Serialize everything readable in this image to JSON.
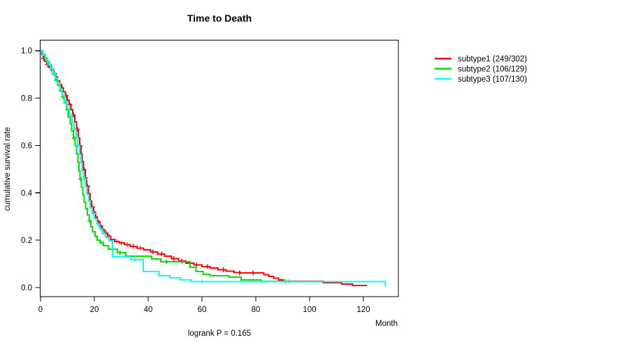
{
  "page": {
    "background": "#ffffff"
  },
  "chart_data": {
    "type": "line",
    "variant": "kaplan-meier-step-survival",
    "title": "Time to Death",
    "xlabel": "Month",
    "ylabel": "cumulative survival rate",
    "footer": "logrank P = 0.165",
    "x_ticks": [
      0,
      20,
      40,
      60,
      80,
      100,
      120
    ],
    "y_ticks": [
      0.0,
      0.2,
      0.4,
      0.6,
      0.8,
      1.0
    ],
    "xlim": [
      0,
      133
    ],
    "ylim": [
      0,
      1.04
    ],
    "grid": false,
    "legend_position": "outside-top-right",
    "series": [
      {
        "name": "subtype1 (249/302)",
        "color": "#ff0000",
        "end_month": 121.3,
        "knots": [
          [
            0,
            1.0
          ],
          [
            0.5,
            0.984
          ],
          [
            1.0,
            0.968
          ],
          [
            1.6,
            0.955
          ],
          [
            2.3,
            0.942
          ],
          [
            3.1,
            0.93
          ],
          [
            4.0,
            0.917
          ],
          [
            4.9,
            0.903
          ],
          [
            5.7,
            0.888
          ],
          [
            6.4,
            0.873
          ],
          [
            7.1,
            0.858
          ],
          [
            7.8,
            0.843
          ],
          [
            8.5,
            0.827
          ],
          [
            9.2,
            0.81
          ],
          [
            9.9,
            0.792
          ],
          [
            10.6,
            0.773
          ],
          [
            11.3,
            0.752
          ],
          [
            12.0,
            0.728
          ],
          [
            12.7,
            0.7
          ],
          [
            13.4,
            0.668
          ],
          [
            14.0,
            0.632
          ],
          [
            14.5,
            0.598
          ],
          [
            15.0,
            0.565
          ],
          [
            15.5,
            0.532
          ],
          [
            16.0,
            0.498
          ],
          [
            16.6,
            0.462
          ],
          [
            17.2,
            0.428
          ],
          [
            17.8,
            0.396
          ],
          [
            18.4,
            0.366
          ],
          [
            19.0,
            0.34
          ],
          [
            19.7,
            0.318
          ],
          [
            20.4,
            0.297
          ],
          [
            21.1,
            0.278
          ],
          [
            21.9,
            0.261
          ],
          [
            22.8,
            0.245
          ],
          [
            23.8,
            0.23
          ],
          [
            24.9,
            0.216
          ],
          [
            26.1,
            0.204
          ],
          [
            27.5,
            0.195
          ],
          [
            29.2,
            0.188
          ],
          [
            31.2,
            0.181
          ],
          [
            33.4,
            0.174
          ],
          [
            35.8,
            0.167
          ],
          [
            38.3,
            0.159
          ],
          [
            40.9,
            0.151
          ],
          [
            43.5,
            0.142
          ],
          [
            46.1,
            0.132
          ],
          [
            48.7,
            0.122
          ],
          [
            51.3,
            0.112
          ],
          [
            54.0,
            0.103
          ],
          [
            57.0,
            0.096
          ],
          [
            60.0,
            0.089
          ],
          [
            63.0,
            0.082
          ],
          [
            66.0,
            0.075
          ],
          [
            69.0,
            0.069
          ],
          [
            72.0,
            0.064
          ],
          [
            74.5,
            0.062
          ],
          [
            83.0,
            0.055
          ],
          [
            84.8,
            0.047
          ],
          [
            86.6,
            0.04
          ],
          [
            88.4,
            0.033
          ],
          [
            90.2,
            0.027
          ],
          [
            105.0,
            0.02
          ],
          [
            112.0,
            0.014
          ],
          [
            116.0,
            0.009
          ]
        ],
        "censors": [
          [
            1.2,
            0.968
          ],
          [
            2.6,
            0.942
          ],
          [
            3.5,
            0.93
          ],
          [
            5.2,
            0.903
          ],
          [
            8.0,
            0.843
          ],
          [
            9.5,
            0.81
          ],
          [
            10.9,
            0.773
          ],
          [
            12.3,
            0.728
          ],
          [
            13.7,
            0.668
          ],
          [
            14.7,
            0.598
          ],
          [
            16.2,
            0.498
          ],
          [
            17.5,
            0.428
          ],
          [
            19.2,
            0.34
          ],
          [
            20.6,
            0.297
          ],
          [
            21.5,
            0.278
          ],
          [
            22.3,
            0.261
          ],
          [
            23.2,
            0.245
          ],
          [
            24.3,
            0.23
          ],
          [
            25.5,
            0.216
          ],
          [
            28.3,
            0.195
          ],
          [
            30.0,
            0.188
          ],
          [
            32.2,
            0.181
          ],
          [
            34.5,
            0.174
          ],
          [
            37.0,
            0.167
          ],
          [
            41.8,
            0.151
          ],
          [
            45.0,
            0.142
          ],
          [
            49.5,
            0.122
          ],
          [
            52.5,
            0.112
          ],
          [
            58.0,
            0.096
          ],
          [
            62.0,
            0.089
          ],
          [
            68.0,
            0.075
          ],
          [
            74.0,
            0.062
          ],
          [
            79.0,
            0.062
          ]
        ]
      },
      {
        "name": "subtype2 (106/129)",
        "color": "#00e000",
        "end_month": 92.5,
        "knots": [
          [
            0,
            1.0
          ],
          [
            0.8,
            0.984
          ],
          [
            1.6,
            0.969
          ],
          [
            2.4,
            0.953
          ],
          [
            3.2,
            0.938
          ],
          [
            4.0,
            0.922
          ],
          [
            4.8,
            0.899
          ],
          [
            5.6,
            0.876
          ],
          [
            6.4,
            0.853
          ],
          [
            7.2,
            0.829
          ],
          [
            8.0,
            0.806
          ],
          [
            8.8,
            0.779
          ],
          [
            9.6,
            0.75
          ],
          [
            10.3,
            0.721
          ],
          [
            11.0,
            0.691
          ],
          [
            11.6,
            0.661
          ],
          [
            12.2,
            0.63
          ],
          [
            12.8,
            0.598
          ],
          [
            13.4,
            0.565
          ],
          [
            13.9,
            0.529
          ],
          [
            14.3,
            0.492
          ],
          [
            14.7,
            0.457
          ],
          [
            15.2,
            0.423
          ],
          [
            15.7,
            0.391
          ],
          [
            16.2,
            0.361
          ],
          [
            16.8,
            0.333
          ],
          [
            17.4,
            0.306
          ],
          [
            18.0,
            0.281
          ],
          [
            18.7,
            0.257
          ],
          [
            19.4,
            0.236
          ],
          [
            20.2,
            0.217
          ],
          [
            21.1,
            0.201
          ],
          [
            22.1,
            0.19
          ],
          [
            23.4,
            0.177
          ],
          [
            25.2,
            0.162
          ],
          [
            28.6,
            0.147
          ],
          [
            31.7,
            0.133
          ],
          [
            41.3,
            0.121
          ],
          [
            44.7,
            0.109
          ],
          [
            55.6,
            0.085
          ],
          [
            57.8,
            0.068
          ],
          [
            60.4,
            0.056
          ],
          [
            63.0,
            0.05
          ],
          [
            70.0,
            0.044
          ],
          [
            74.5,
            0.032
          ],
          [
            82.0,
            0.026
          ]
        ],
        "censors": [
          [
            5.9,
            0.876
          ],
          [
            8.4,
            0.806
          ],
          [
            12.5,
            0.63
          ],
          [
            15.0,
            0.457
          ],
          [
            18.3,
            0.281
          ],
          [
            22.6,
            0.19
          ],
          [
            29.5,
            0.147
          ],
          [
            46.8,
            0.109
          ],
          [
            91.0,
            0.026
          ],
          [
            92.2,
            0.026
          ]
        ]
      },
      {
        "name": "subtype3 (107/130)",
        "color": "#00ffff",
        "end_month": 128.2,
        "knots": [
          [
            0,
            1.0
          ],
          [
            0.9,
            0.981
          ],
          [
            1.8,
            0.962
          ],
          [
            2.7,
            0.943
          ],
          [
            3.6,
            0.924
          ],
          [
            4.5,
            0.905
          ],
          [
            5.4,
            0.884
          ],
          [
            6.3,
            0.862
          ],
          [
            7.2,
            0.838
          ],
          [
            8.1,
            0.812
          ],
          [
            9.0,
            0.786
          ],
          [
            9.9,
            0.758
          ],
          [
            10.8,
            0.729
          ],
          [
            11.7,
            0.698
          ],
          [
            12.5,
            0.666
          ],
          [
            13.2,
            0.634
          ],
          [
            13.9,
            0.6
          ],
          [
            14.5,
            0.562
          ],
          [
            15.0,
            0.526
          ],
          [
            15.5,
            0.492
          ],
          [
            16.1,
            0.458
          ],
          [
            16.7,
            0.425
          ],
          [
            17.3,
            0.394
          ],
          [
            17.9,
            0.365
          ],
          [
            18.5,
            0.338
          ],
          [
            19.2,
            0.313
          ],
          [
            20.0,
            0.29
          ],
          [
            20.9,
            0.268
          ],
          [
            21.9,
            0.247
          ],
          [
            23.0,
            0.228
          ],
          [
            24.2,
            0.212
          ],
          [
            25.5,
            0.198
          ],
          [
            26.8,
            0.13
          ],
          [
            33.5,
            0.118
          ],
          [
            38.2,
            0.068
          ],
          [
            44.0,
            0.05
          ],
          [
            48.0,
            0.041
          ],
          [
            52.0,
            0.033
          ],
          [
            56.0,
            0.025
          ],
          [
            128.2,
            0.004
          ]
        ],
        "censors": [
          [
            4.8,
            0.905
          ],
          [
            9.4,
            0.786
          ],
          [
            13.6,
            0.6
          ],
          [
            16.4,
            0.458
          ],
          [
            19.6,
            0.313
          ],
          [
            23.5,
            0.228
          ],
          [
            35.0,
            0.118
          ],
          [
            60.0,
            0.025
          ]
        ]
      }
    ]
  }
}
